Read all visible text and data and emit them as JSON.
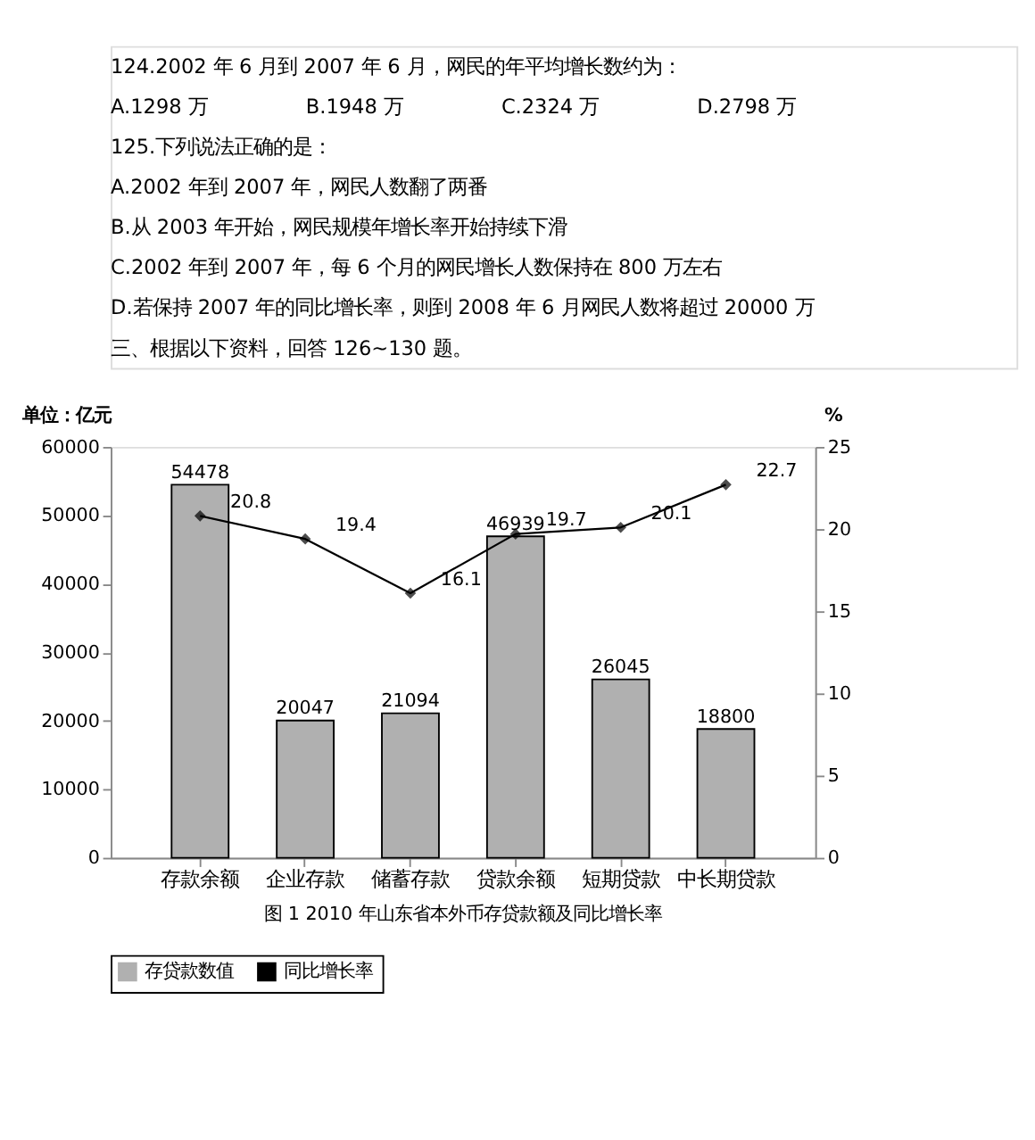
{
  "chart_data": {
    "type": "bar",
    "title": "图 1 2010 年山东省本外币存贷款额及同比增长率",
    "annotations": [
      "124.2002 年 6 月到 2007 年 6 月，网民的年平均增长数约为：",
      "A.1298 万　　　　　B.1948 万　　　　　C.2324 万　　　　　D.2798 万",
      "125.下列说法正确的是：",
      "A.2002 年到 2007 年，网民人数翻了两番",
      "B.从 2003 年开始，网民规模年增长率开始持续下滑",
      "C.2002 年到 2007 年，每 6 个月的网民增长人数保持在 800 万左右",
      "D.若保持 2007 年的同比增长率，则到 2008 年 6 月网民人数将超过 20000 万",
      "三、根据以下资料，回答 126~130 题。"
    ],
    "ylabel": "单位：亿元",
    "y2label": "%",
    "categories": [
      "存款余额",
      "企业存款",
      "储蓄存款",
      "贷款余额",
      "短期贷款",
      "中长期贷款"
    ],
    "series": [
      {
        "name": "存贷款数值",
        "color": "#b0b0b0",
        "values": [
          54478,
          20047,
          21094,
          46939,
          26045,
          18800
        ]
      },
      {
        "name": "同比增长率",
        "type": "line",
        "axis": "y2",
        "color": "#000000",
        "marker": "diamond",
        "values": [
          20.8,
          19.4,
          16.1,
          19.7,
          20.1,
          22.7
        ]
      }
    ],
    "ylim": [
      0,
      60000
    ],
    "yticks": [
      0,
      10000,
      20000,
      30000,
      40000,
      50000,
      60000
    ],
    "y2lim": [
      0,
      25
    ],
    "y2ticks": [
      0,
      5,
      10,
      15,
      20,
      25
    ],
    "data_labels": true,
    "grid": false,
    "legend": "bottom"
  }
}
